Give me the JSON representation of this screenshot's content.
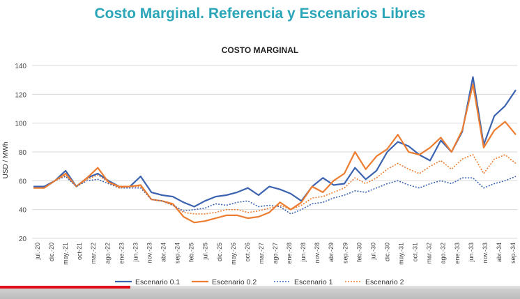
{
  "slide": {
    "title": "Costo Marginal. Referencia y Escenarios Libres"
  },
  "video": {
    "progress": 0.25
  },
  "chart_data": {
    "type": "line",
    "title": "COSTO MARGINAL",
    "ylabel": "USD / MWh",
    "xlabel": "",
    "ylim": [
      20,
      140
    ],
    "yticks": [
      20,
      40,
      60,
      80,
      100,
      120,
      140
    ],
    "grid": true,
    "legend_position": "bottom",
    "xticks": [
      "jul.-20",
      "dic.-20",
      "may.-21",
      "oct-21",
      "mar.-22",
      "ago.-22",
      "ene.-23",
      "jun.-23",
      "nov.-23",
      "abr.-24",
      "sep.-24",
      "feb.-25",
      "jul.-25",
      "dic.-25",
      "may.-26",
      "oct.-26",
      "mar.-27",
      "ago.-27",
      "ene.-28",
      "jun.-28",
      "nov.-28",
      "abr.-29",
      "sep.-29",
      "feb.-30",
      "jul.-30",
      "dic.-30",
      "may.-31",
      "oct.-31",
      "mar.-32",
      "ago.-32",
      "ene.-33",
      "jun.-33",
      "nov.-33",
      "abr.-34",
      "sep.-34"
    ],
    "colors": {
      "Escenario 0.1": "#3c63b0",
      "Escenario 0.2": "#ed7d31",
      "Escenario 1": "#3c63b0",
      "Escenario 2": "#ed7d31"
    },
    "series": [
      {
        "name": "Escenario 0.1",
        "style": "solid",
        "values": [
          56,
          56,
          60,
          67,
          56,
          62,
          65,
          60,
          56,
          56,
          63,
          52,
          50,
          49,
          45,
          42,
          46,
          49,
          50,
          52,
          55,
          50,
          56,
          54,
          51,
          46,
          56,
          62,
          57,
          58,
          69,
          61,
          67,
          80,
          87,
          84,
          78,
          74,
          88,
          80,
          94,
          132,
          85,
          105,
          112,
          123
        ]
      },
      {
        "name": "Escenario 0.2",
        "style": "solid",
        "values": [
          55,
          55,
          60,
          65,
          56,
          62,
          69,
          59,
          56,
          56,
          57,
          47,
          46,
          44,
          35,
          31,
          32,
          34,
          36,
          36,
          34,
          35,
          38,
          45,
          40,
          45,
          56,
          52,
          60,
          65,
          80,
          68,
          77,
          82,
          92,
          80,
          78,
          83,
          90,
          80,
          95,
          127,
          83,
          95,
          101,
          92
        ]
      },
      {
        "name": "Escenario 1",
        "style": "dotted",
        "values": [
          55,
          55,
          60,
          63,
          56,
          60,
          61,
          58,
          55,
          55,
          55,
          47,
          46,
          43,
          39,
          40,
          41,
          44,
          43,
          45,
          46,
          42,
          43,
          42,
          37,
          40,
          44,
          45,
          48,
          50,
          53,
          52,
          55,
          58,
          60,
          57,
          55,
          58,
          60,
          58,
          62,
          62,
          55,
          58,
          60,
          63
        ]
      },
      {
        "name": "Escenario 2",
        "style": "dotted",
        "values": [
          55,
          55,
          60,
          64,
          56,
          61,
          64,
          59,
          55,
          56,
          56,
          47,
          46,
          43,
          38,
          37,
          37,
          38,
          40,
          40,
          38,
          39,
          41,
          43,
          40,
          43,
          48,
          49,
          52,
          55,
          62,
          58,
          62,
          68,
          72,
          68,
          65,
          70,
          74,
          68,
          75,
          78,
          65,
          75,
          78,
          72
        ]
      }
    ]
  }
}
